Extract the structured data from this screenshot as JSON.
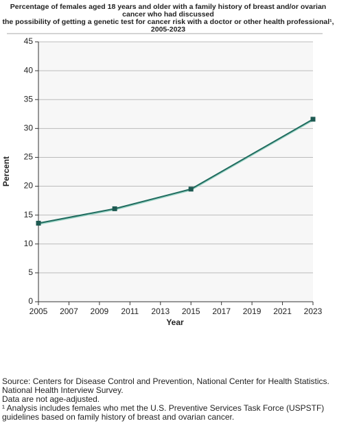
{
  "chart_data": {
    "type": "line",
    "title": [
      "Percentage of females aged 18 years and older with a family history of breast and/or ovarian",
      "cancer  who had discussed",
      "the possibility of getting a genetic test for cancer risk with a doctor or other health professional¹,",
      "2005-2023"
    ],
    "x_label": "Year",
    "y_label": "Percent",
    "x": [
      2005,
      2010,
      2015,
      2023
    ],
    "series": [
      {
        "name": "Percent",
        "color": "#1f6b5e",
        "values": [
          13.6,
          16.1,
          19.5,
          31.6
        ]
      }
    ],
    "xlim": [
      2005,
      2023
    ],
    "xticks": [
      2005,
      2007,
      2009,
      2011,
      2013,
      2015,
      2017,
      2019,
      2021,
      2023
    ],
    "ylim": [
      0,
      45
    ],
    "yticks": [
      0,
      5,
      10,
      15,
      20,
      25,
      30,
      35,
      40,
      45
    ],
    "grid": true,
    "notes": [
      "Source: Centers for Disease Control and Prevention, National Center for Health Statistics.",
      "National Health Interview Survey.",
      "Data are not age-adjusted.",
      "¹ Analysis includes females who met the U.S. Preventive Services Task Force (USPSTF)",
      "guidelines based on family history of breast and ovarian cancer."
    ]
  }
}
